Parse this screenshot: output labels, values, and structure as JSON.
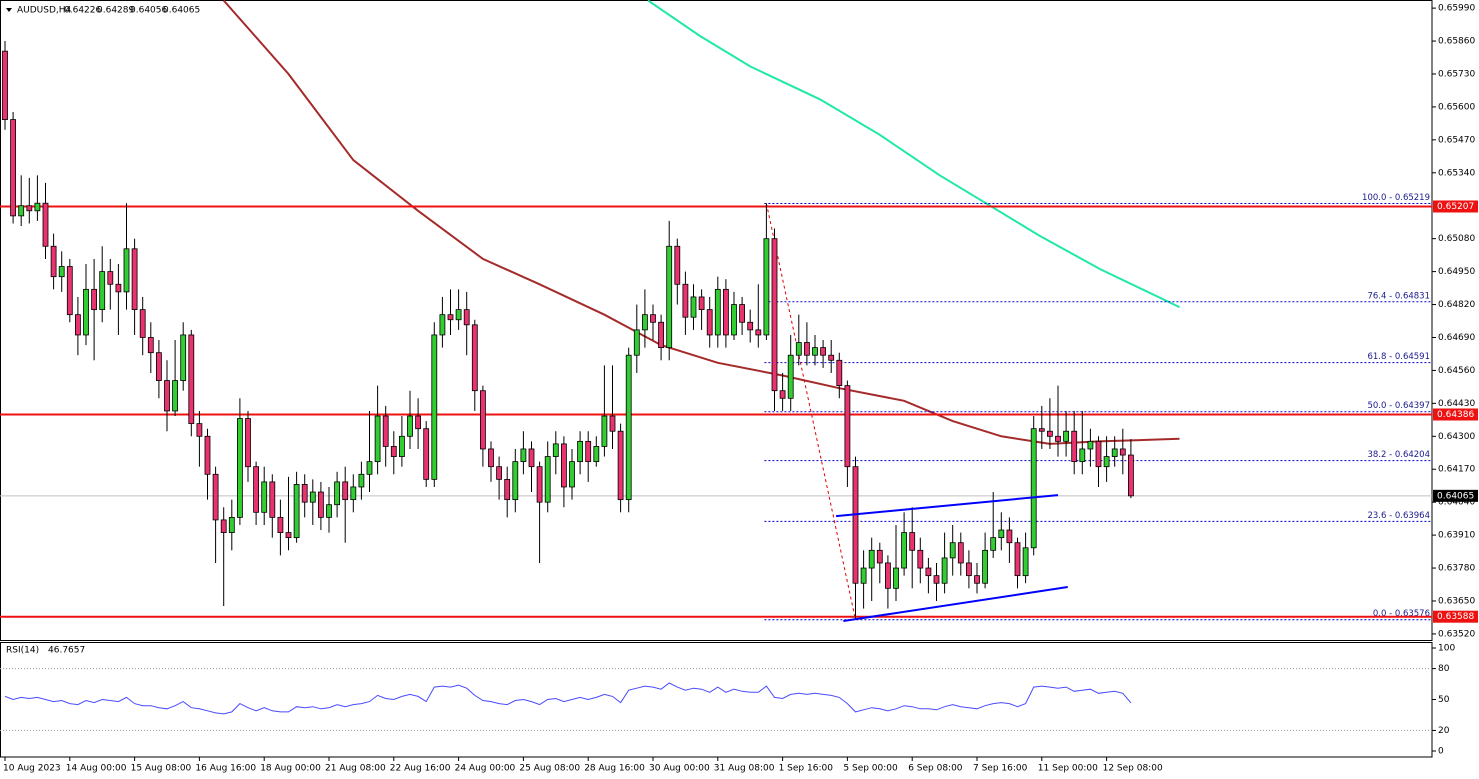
{
  "chart_data": [
    {
      "type": "candlestick",
      "title": "AUDUSD,H4",
      "categories": [
        "10 Aug 2023",
        null,
        null,
        null,
        null,
        null,
        null,
        null,
        "14 Aug 00:00",
        null,
        null,
        null,
        null,
        null,
        null,
        null,
        "15 Aug 08:00",
        null,
        null,
        null,
        null,
        null,
        null,
        null,
        "16 Aug 16:00",
        null,
        null,
        null,
        null,
        null,
        null,
        null,
        "18 Aug 00:00",
        null,
        null,
        null,
        null,
        null,
        null,
        null,
        "21 Aug 08:00",
        null,
        null,
        null,
        null,
        null,
        null,
        null,
        "22 Aug 16:00",
        null,
        null,
        null,
        null,
        null,
        null,
        null,
        "24 Aug 00:00",
        null,
        null,
        null,
        null,
        null,
        null,
        null,
        "25 Aug 08:00",
        null,
        null,
        null,
        null,
        null,
        null,
        null,
        "28 Aug 16:00",
        null,
        null,
        null,
        null,
        null,
        null,
        null,
        "30 Aug 00:00",
        null,
        null,
        null,
        null,
        null,
        null,
        null,
        "31 Aug 08:00",
        null,
        null,
        null,
        null,
        null,
        null,
        null,
        "1 Sep 16:00",
        null,
        null,
        null,
        null,
        null,
        null,
        null,
        "5 Sep 00:00",
        null,
        null,
        null,
        null,
        null,
        null,
        null,
        "6 Sep 08:00",
        null,
        null,
        null,
        null,
        null,
        null,
        null,
        "7 Sep 16:00",
        null,
        null,
        null,
        null,
        null,
        null,
        null,
        "11 Sep 00:00",
        null,
        null,
        null,
        null,
        null,
        null,
        null,
        "12 Sep 08:00",
        null,
        null,
        null
      ],
      "open": [
        0.6582,
        0.6555,
        0.6517,
        0.6521,
        0.6519,
        0.6522,
        0.6505,
        0.6493,
        0.6497,
        0.6478,
        0.647,
        0.6488,
        0.648,
        0.6495,
        0.649,
        0.6487,
        0.6504,
        0.648,
        0.6469,
        0.6463,
        0.6452,
        0.644,
        0.6452,
        0.647,
        0.6435,
        0.643,
        0.6415,
        0.6397,
        0.6392,
        0.6398,
        0.6437,
        0.6418,
        0.64,
        0.6412,
        0.6398,
        0.6392,
        0.639,
        0.6411,
        0.6404,
        0.6408,
        0.6398,
        0.6403,
        0.6412,
        0.6405,
        0.641,
        0.6415,
        0.642,
        0.6438,
        0.6426,
        0.6422,
        0.643,
        0.6438,
        0.6433,
        0.6413,
        0.647,
        0.6478,
        0.6476,
        0.648,
        0.6474,
        0.6448,
        0.6425,
        0.6418,
        0.6413,
        0.6405,
        0.642,
        0.6425,
        0.6418,
        0.6404,
        0.6422,
        0.6427,
        0.641,
        0.642,
        0.6428,
        0.642,
        0.6426,
        0.6438,
        0.6432,
        0.6405,
        0.6462,
        0.6472,
        0.6478,
        0.6475,
        0.6465,
        0.6505,
        0.649,
        0.6477,
        0.6485,
        0.648,
        0.647,
        0.6488,
        0.647,
        0.6482,
        0.6475,
        0.6472,
        0.647,
        0.6508,
        0.6448,
        0.6445,
        0.6462,
        0.6467,
        0.6462,
        0.6465,
        0.6462,
        0.646,
        0.645,
        0.6418,
        0.6372,
        0.6378,
        0.6385,
        0.638,
        0.637,
        0.6378,
        0.6392,
        0.6385,
        0.6378,
        0.6375,
        0.6372,
        0.6382,
        0.6388,
        0.638,
        0.6375,
        0.6372,
        0.6385,
        0.639,
        0.6393,
        0.6388,
        0.6375,
        0.6386,
        0.6433,
        0.6432,
        0.643,
        0.6428,
        0.6432,
        0.642,
        0.6425,
        0.6428,
        0.6418,
        0.6422,
        0.6425,
        0.64226
      ],
      "high": [
        0.6586,
        0.6558,
        0.6533,
        0.6532,
        0.6533,
        0.653,
        0.651,
        0.6503,
        0.65,
        0.6485,
        0.6498,
        0.65,
        0.6505,
        0.65,
        0.6498,
        0.6522,
        0.6508,
        0.6485,
        0.6475,
        0.6468,
        0.646,
        0.6468,
        0.6475,
        0.6472,
        0.644,
        0.6433,
        0.6418,
        0.6402,
        0.6405,
        0.6445,
        0.644,
        0.642,
        0.6418,
        0.6415,
        0.6405,
        0.6414,
        0.6416,
        0.6415,
        0.6413,
        0.6412,
        0.641,
        0.6416,
        0.6418,
        0.6415,
        0.642,
        0.644,
        0.645,
        0.6442,
        0.6432,
        0.6438,
        0.6448,
        0.6445,
        0.6436,
        0.6475,
        0.6485,
        0.6488,
        0.6488,
        0.6487,
        0.6476,
        0.645,
        0.6428,
        0.6422,
        0.6418,
        0.6425,
        0.6432,
        0.6428,
        0.642,
        0.6428,
        0.6432,
        0.643,
        0.6425,
        0.6432,
        0.6432,
        0.643,
        0.6458,
        0.6458,
        0.6435,
        0.6465,
        0.6482,
        0.6488,
        0.6482,
        0.6478,
        0.6515,
        0.6508,
        0.6495,
        0.649,
        0.6488,
        0.6485,
        0.6493,
        0.6492,
        0.6487,
        0.6485,
        0.648,
        0.649,
        0.65219,
        0.6512,
        0.6455,
        0.647,
        0.6478,
        0.6475,
        0.647,
        0.6468,
        0.6468,
        0.6463,
        0.6452,
        0.6422,
        0.6385,
        0.639,
        0.6388,
        0.6383,
        0.6395,
        0.64,
        0.6402,
        0.639,
        0.6382,
        0.638,
        0.6392,
        0.6395,
        0.6392,
        0.6385,
        0.638,
        0.6392,
        0.6408,
        0.64,
        0.6398,
        0.639,
        0.6392,
        0.6438,
        0.6442,
        0.6445,
        0.645,
        0.644,
        0.644,
        0.644,
        0.6433,
        0.643,
        0.643,
        0.643,
        0.6433,
        0.64289
      ],
      "low": [
        0.6551,
        0.6514,
        0.6513,
        0.6514,
        0.6515,
        0.65,
        0.6488,
        0.6487,
        0.6475,
        0.6462,
        0.6466,
        0.646,
        0.6475,
        0.648,
        0.647,
        0.648,
        0.647,
        0.6462,
        0.6455,
        0.6445,
        0.6432,
        0.6438,
        0.6448,
        0.643,
        0.6418,
        0.6405,
        0.638,
        0.6363,
        0.6385,
        0.6395,
        0.6412,
        0.6395,
        0.6395,
        0.639,
        0.6383,
        0.6385,
        0.6388,
        0.6398,
        0.6395,
        0.6393,
        0.6392,
        0.6398,
        0.6388,
        0.64,
        0.6405,
        0.6408,
        0.6415,
        0.6418,
        0.6415,
        0.6418,
        0.6425,
        0.6425,
        0.641,
        0.641,
        0.6465,
        0.647,
        0.6472,
        0.6462,
        0.644,
        0.6418,
        0.6412,
        0.6405,
        0.6398,
        0.64,
        0.6415,
        0.6408,
        0.638,
        0.64,
        0.6415,
        0.6402,
        0.6405,
        0.6415,
        0.6412,
        0.6418,
        0.6422,
        0.6425,
        0.64,
        0.64,
        0.6455,
        0.6465,
        0.6468,
        0.646,
        0.646,
        0.6482,
        0.647,
        0.6472,
        0.6472,
        0.6465,
        0.6465,
        0.6465,
        0.6468,
        0.647,
        0.6467,
        0.6465,
        0.6468,
        0.644,
        0.644,
        0.644,
        0.6458,
        0.6458,
        0.6458,
        0.6457,
        0.6455,
        0.6445,
        0.641,
        0.63576,
        0.6362,
        0.6365,
        0.6372,
        0.6362,
        0.6365,
        0.6375,
        0.637,
        0.6372,
        0.6368,
        0.6365,
        0.6368,
        0.6375,
        0.6375,
        0.637,
        0.6368,
        0.637,
        0.6382,
        0.6385,
        0.638,
        0.637,
        0.6372,
        0.6383,
        0.6425,
        0.6425,
        0.6422,
        0.6422,
        0.6415,
        0.6415,
        0.6418,
        0.641,
        0.6412,
        0.6418,
        0.6415,
        0.64056
      ],
      "close": [
        0.6555,
        0.6517,
        0.6521,
        0.6519,
        0.6522,
        0.6505,
        0.6493,
        0.6497,
        0.6478,
        0.647,
        0.6488,
        0.648,
        0.6495,
        0.649,
        0.6487,
        0.6504,
        0.648,
        0.6469,
        0.6463,
        0.6452,
        0.644,
        0.6452,
        0.647,
        0.6435,
        0.643,
        0.6415,
        0.6397,
        0.6392,
        0.6398,
        0.6437,
        0.6418,
        0.64,
        0.6412,
        0.6398,
        0.6392,
        0.639,
        0.6411,
        0.6404,
        0.6408,
        0.6398,
        0.6403,
        0.6412,
        0.6405,
        0.641,
        0.6415,
        0.642,
        0.6438,
        0.6426,
        0.6422,
        0.643,
        0.6438,
        0.6433,
        0.6413,
        0.647,
        0.6478,
        0.6476,
        0.648,
        0.6474,
        0.6448,
        0.6425,
        0.6418,
        0.6413,
        0.6405,
        0.642,
        0.6425,
        0.6418,
        0.6404,
        0.6422,
        0.6427,
        0.641,
        0.642,
        0.6428,
        0.642,
        0.6426,
        0.6438,
        0.6432,
        0.6405,
        0.6462,
        0.6472,
        0.6478,
        0.6475,
        0.6465,
        0.6505,
        0.649,
        0.6477,
        0.6485,
        0.648,
        0.647,
        0.6488,
        0.647,
        0.6482,
        0.6475,
        0.6472,
        0.647,
        0.6508,
        0.6448,
        0.6445,
        0.6462,
        0.6467,
        0.6462,
        0.6465,
        0.6462,
        0.646,
        0.645,
        0.6418,
        0.6372,
        0.6378,
        0.6385,
        0.638,
        0.637,
        0.6378,
        0.6392,
        0.6385,
        0.6378,
        0.6375,
        0.6372,
        0.6382,
        0.6388,
        0.638,
        0.6375,
        0.6372,
        0.6385,
        0.639,
        0.6393,
        0.6388,
        0.6375,
        0.6386,
        0.6433,
        0.6432,
        0.643,
        0.6428,
        0.6432,
        0.642,
        0.6425,
        0.6428,
        0.6418,
        0.6422,
        0.6425,
        0.64226,
        0.64065
      ],
      "up_color": "#32cd32",
      "down_color": "#e8336e",
      "ylim": [
        0.63496,
        0.66022
      ],
      "yticks": [
        {
          "value": 0.6599,
          "label": "0.65990"
        },
        {
          "value": 0.6586,
          "label": "0.65860"
        },
        {
          "value": 0.6573,
          "label": "0.65730"
        },
        {
          "value": 0.656,
          "label": "0.65600"
        },
        {
          "value": 0.6547,
          "label": "0.65470"
        },
        {
          "value": 0.6534,
          "label": "0.65340"
        },
        {
          "value": 0.6508,
          "label": "0.65080"
        },
        {
          "value": 0.6495,
          "label": "0.64950"
        },
        {
          "value": 0.6482,
          "label": "0.64820"
        },
        {
          "value": 0.6469,
          "label": "0.64690"
        },
        {
          "value": 0.6456,
          "label": "0.64560"
        },
        {
          "value": 0.6443,
          "label": "0.64430"
        },
        {
          "value": 0.643,
          "label": "0.64300"
        },
        {
          "value": 0.6417,
          "label": "0.64170"
        },
        {
          "value": 0.6404,
          "label": "0.64040"
        },
        {
          "value": 0.6391,
          "label": "0.63910"
        },
        {
          "value": 0.6378,
          "label": "0.63780"
        },
        {
          "value": 0.6365,
          "label": "0.63650"
        },
        {
          "value": 0.6352,
          "label": "0.63520"
        }
      ],
      "grid": false,
      "hlines": [
        {
          "value": 0.65207,
          "color": "#ee1111"
        },
        {
          "value": 0.64386,
          "color": "#ee1111"
        },
        {
          "value": 0.63588,
          "color": "#ee1111"
        }
      ],
      "lines": [
        {
          "color": "#a52a2a",
          "x": [
            27,
            35,
            43,
            51,
            59,
            66,
            74,
            81,
            88,
            96,
            103,
            111,
            117,
            123,
            129,
            135,
            145
          ],
          "values": [
            0.6602,
            0.6573,
            0.6539,
            0.6519,
            0.65,
            0.649,
            0.6478,
            0.6466,
            0.6459,
            0.6454,
            0.6449,
            0.6444,
            0.6436,
            0.643,
            0.6427,
            0.6428,
            0.6429
          ]
        },
        {
          "color": "#20e8a8",
          "x": [
            79.4,
            85.8,
            92,
            100.6,
            108,
            115.4,
            121.6,
            127.8,
            135.2,
            145
          ],
          "values": [
            0.6602,
            0.6588,
            0.6576,
            0.6563,
            0.6549,
            0.6533,
            0.6521,
            0.6509,
            0.6496,
            0.6481
          ]
        }
      ],
      "trendlines": [
        {
          "color": "#0000ff",
          "x": [
            102.6,
            130
          ],
          "values": [
            0.63985,
            0.64068
          ]
        },
        {
          "color": "#0000ff",
          "x": [
            103.5,
            131.2
          ],
          "values": [
            0.63571,
            0.63705
          ]
        }
      ],
      "fib": {
        "color": "#0000cd",
        "from_index": 94,
        "to_index": 105,
        "levels": [
          {
            "value": 0.65219,
            "label": "100.0 - 0.65219"
          },
          {
            "value": 0.64831,
            "label": "76.4 - 0.64831"
          },
          {
            "value": 0.64591,
            "label": "61.8 - 0.64591"
          },
          {
            "value": 0.64397,
            "label": "50.0 - 0.64397"
          },
          {
            "value": 0.64204,
            "label": "38.2 - 0.64204"
          },
          {
            "value": 0.63964,
            "label": "23.6 - 0.63964"
          },
          {
            "value": 0.63576,
            "label": "0.0 - 0.63576"
          }
        ]
      }
    },
    {
      "type": "line",
      "title": "RSI(14)",
      "color": "#4a4aff",
      "values": [
        53,
        50,
        52,
        51,
        52,
        50,
        48,
        49,
        46,
        45,
        49,
        47,
        50,
        49,
        48,
        52,
        46,
        44,
        44,
        42,
        41,
        44,
        48,
        42,
        41,
        39,
        37,
        36,
        38,
        46,
        42,
        39,
        42,
        39,
        38,
        38,
        43,
        42,
        43,
        41,
        42,
        45,
        43,
        45,
        46,
        48,
        54,
        51,
        50,
        53,
        55,
        53,
        48,
        62,
        63,
        62,
        64,
        61,
        54,
        49,
        48,
        46,
        45,
        49,
        50,
        48,
        45,
        50,
        51,
        48,
        50,
        52,
        50,
        52,
        55,
        53,
        47,
        59,
        61,
        63,
        62,
        60,
        66,
        62,
        59,
        61,
        60,
        57,
        62,
        57,
        60,
        58,
        57,
        57,
        63,
        52,
        51,
        55,
        56,
        55,
        56,
        55,
        54,
        52,
        46,
        38,
        40,
        42,
        41,
        39,
        41,
        44,
        43,
        41,
        41,
        40,
        43,
        45,
        43,
        42,
        41,
        44,
        46,
        47,
        46,
        43,
        46,
        62,
        63,
        62,
        61,
        62,
        58,
        59,
        60,
        56,
        57,
        58,
        56,
        46.7657
      ],
      "ylim": [
        0,
        100
      ],
      "yticks": [
        100,
        80,
        50,
        20,
        0
      ],
      "levels": [
        80,
        20
      ]
    }
  ]
}
